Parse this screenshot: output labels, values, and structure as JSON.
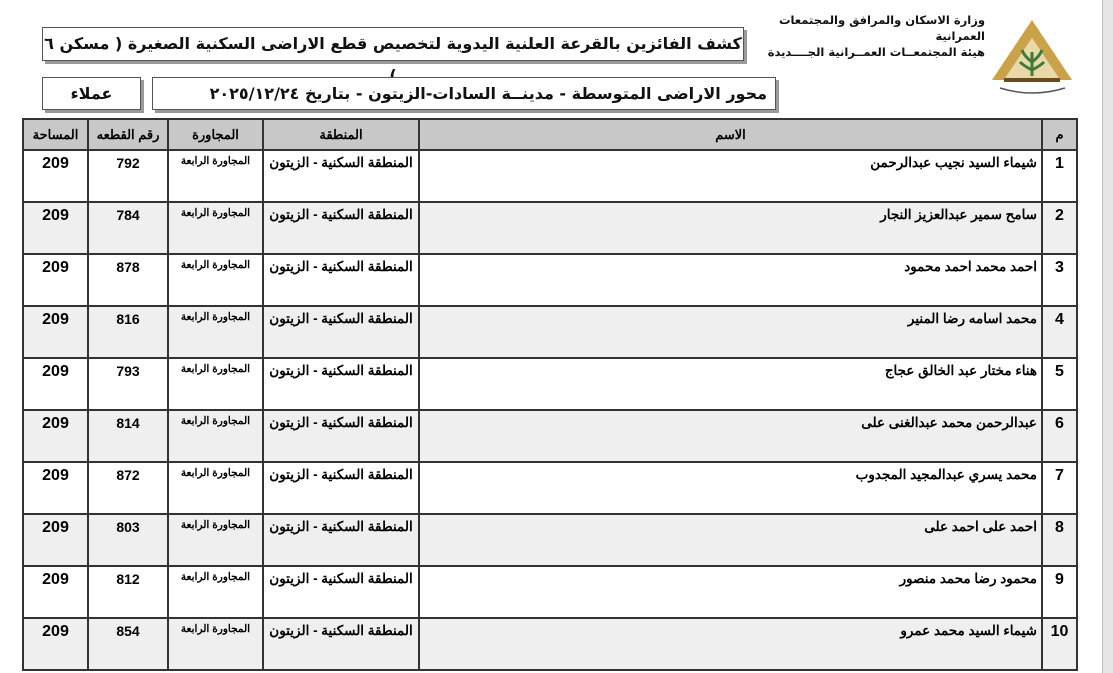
{
  "header": {
    "ministry_line1": "وزارة الاسكان والمرافق والمجتمعات العمرانية",
    "ministry_line2": "هيئة المجتمعــات العمــرانية الجــــديدة",
    "title": "كشف الفائزين بالقرعة العلنية اليدوية لتخصيص قطع الاراضى السكنية الصغيرة ( مسكن ٦ )",
    "subtitle": "محور الاراضى المتوسطة - مدينــة السادات-الزيتون  - بتاريخ ٢٠٢٥/١٢/٢٤",
    "category": "عملاء"
  },
  "colors": {
    "header_bg": "#c8c8c8",
    "alt_row": "#efefef",
    "logo_gold": "#c9a24a",
    "logo_green": "#3f7a3a"
  },
  "table": {
    "columns": {
      "m": "م",
      "name": "الاسم",
      "zone": "المنطقة",
      "neighborhood": "المجاورة",
      "plot": "رقم القطعه",
      "area": "المساحة"
    },
    "rows": [
      {
        "m": "1",
        "name": "شيماء السيد نجيب عبدالرحمن",
        "zone": "المنطقة السكنية - الزيتون",
        "neighborhood": "المجاورة الرابعة",
        "plot": "792",
        "area": "209"
      },
      {
        "m": "2",
        "name": "سامح سمير عبدالعزيز النجار",
        "zone": "المنطقة السكنية - الزيتون",
        "neighborhood": "المجاورة الرابعة",
        "plot": "784",
        "area": "209"
      },
      {
        "m": "3",
        "name": "احمد محمد احمد محمود",
        "zone": "المنطقة السكنية - الزيتون",
        "neighborhood": "المجاورة الرابعة",
        "plot": "878",
        "area": "209"
      },
      {
        "m": "4",
        "name": "محمد اسامه رضا المنير",
        "zone": "المنطقة السكنية - الزيتون",
        "neighborhood": "المجاورة الرابعة",
        "plot": "816",
        "area": "209"
      },
      {
        "m": "5",
        "name": "هناء مختار عبد الخالق عجاج",
        "zone": "المنطقة السكنية - الزيتون",
        "neighborhood": "المجاورة الرابعة",
        "plot": "793",
        "area": "209"
      },
      {
        "m": "6",
        "name": "عبدالرحمن محمد عبدالغنى على",
        "zone": "المنطقة السكنية - الزيتون",
        "neighborhood": "المجاورة الرابعة",
        "plot": "814",
        "area": "209"
      },
      {
        "m": "7",
        "name": "محمد يسري عبدالمجيد المجدوب",
        "zone": "المنطقة السكنية - الزيتون",
        "neighborhood": "المجاورة الرابعة",
        "plot": "872",
        "area": "209"
      },
      {
        "m": "8",
        "name": "احمد على احمد على",
        "zone": "المنطقة السكنية - الزيتون",
        "neighborhood": "المجاورة الرابعة",
        "plot": "803",
        "area": "209"
      },
      {
        "m": "9",
        "name": "محمود رضا محمد منصور",
        "zone": "المنطقة السكنية - الزيتون",
        "neighborhood": "المجاورة الرابعة",
        "plot": "812",
        "area": "209"
      },
      {
        "m": "10",
        "name": "شيماء السيد محمد عمرو",
        "zone": "المنطقة السكنية - الزيتون",
        "neighborhood": "المجاورة الرابعة",
        "plot": "854",
        "area": "209"
      }
    ]
  }
}
